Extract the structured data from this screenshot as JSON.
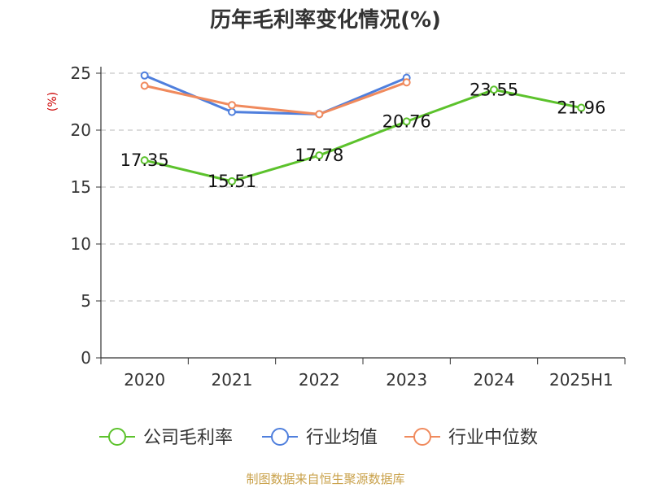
{
  "chart_data": {
    "type": "line",
    "title": "历年毛利率变化情况(%)",
    "ylabel": "(%)",
    "xlabel": "",
    "categories": [
      "2020",
      "2021",
      "2022",
      "2023",
      "2024",
      "2025H1"
    ],
    "ylim": [
      0,
      25
    ],
    "yticks": [
      0,
      5,
      10,
      15,
      20,
      25
    ],
    "grid": true,
    "legend_position": "bottom",
    "series": [
      {
        "name": "公司毛利率",
        "color": "#5cc22c",
        "show_labels": true,
        "values": [
          17.35,
          15.51,
          17.78,
          20.76,
          23.55,
          21.96
        ],
        "labels": [
          "17.35",
          "15.51",
          "17.78",
          "20.76",
          "23.55",
          "21.96"
        ]
      },
      {
        "name": "行业均值",
        "color": "#4f7fdd",
        "show_labels": false,
        "values": [
          24.8,
          21.6,
          21.4,
          24.6,
          null,
          null
        ]
      },
      {
        "name": "行业中位数",
        "color": "#f08a5d",
        "show_labels": false,
        "values": [
          23.9,
          22.2,
          21.4,
          24.2,
          null,
          null
        ]
      }
    ]
  },
  "source_note": "制图数据来自恒生聚源数据库"
}
